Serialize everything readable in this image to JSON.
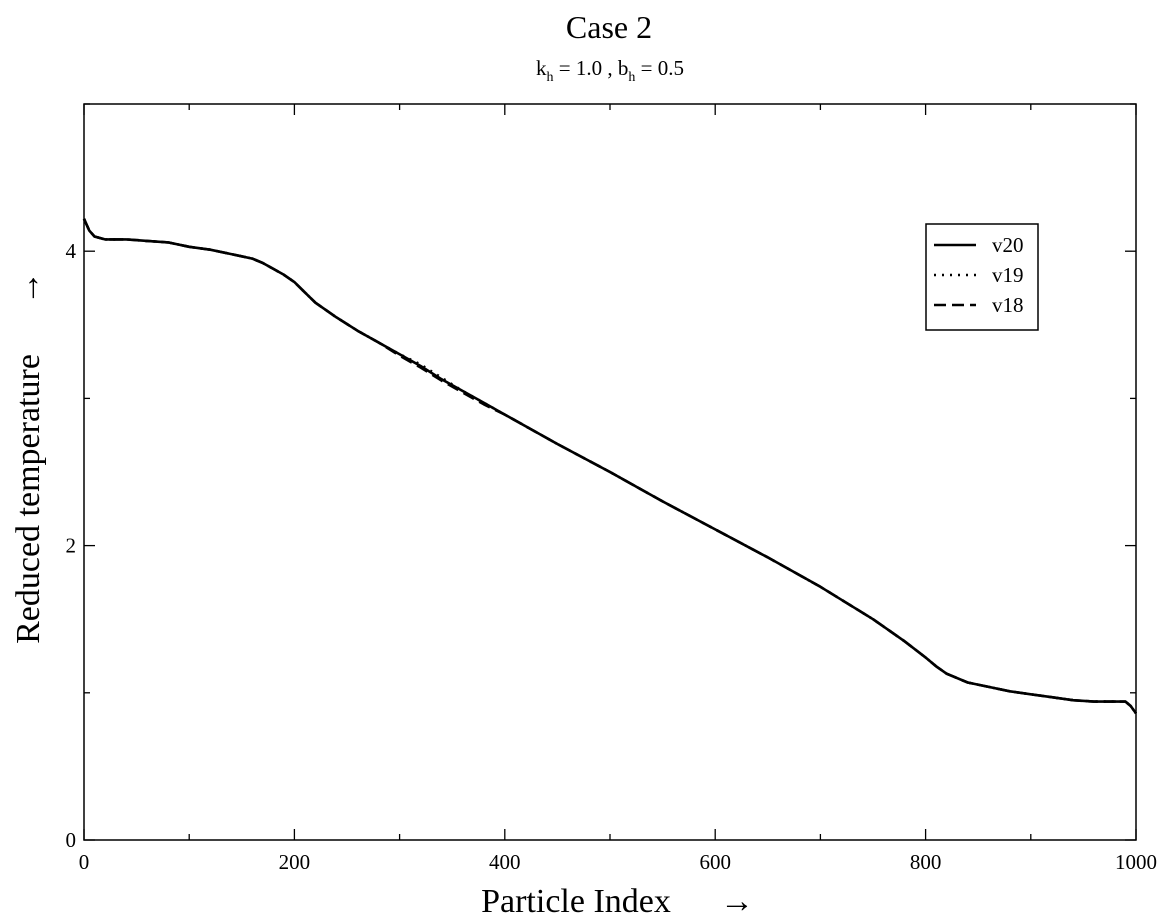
{
  "chart_data": {
    "type": "line",
    "title": "Case 2",
    "subtitle": {
      "k_symbol": "k",
      "k_sub": "h",
      "k_rest": " = 1.0 , ",
      "b_symbol": "b",
      "b_sub": "h",
      "b_rest": " = 0.5"
    },
    "xlabel": "Particle Index",
    "ylabel": "Reduced temperature",
    "arrow": "→",
    "xlim": [
      0,
      1000
    ],
    "ylim": [
      0,
      5
    ],
    "x_ticks": [
      0,
      200,
      400,
      600,
      800,
      1000
    ],
    "x_tick_labels": [
      "0",
      "200",
      "400",
      "600",
      "800",
      "1000"
    ],
    "y_ticks": [
      0,
      2,
      4
    ],
    "y_tick_labels": [
      "0",
      "2",
      "4"
    ],
    "x_minor_step": 100,
    "y_minor_step": 1,
    "grid": false,
    "legend_position": "top-right",
    "line_color": "#000000",
    "series": [
      {
        "name": "v20",
        "style": "solid",
        "x": [
          0,
          5,
          10,
          20,
          40,
          60,
          80,
          100,
          120,
          140,
          160,
          170,
          180,
          190,
          200,
          210,
          220,
          240,
          260,
          280,
          300,
          320,
          340,
          360,
          380,
          400,
          450,
          500,
          550,
          600,
          650,
          700,
          750,
          780,
          800,
          810,
          820,
          840,
          860,
          880,
          900,
          920,
          940,
          960,
          980,
          990,
          995,
          1000
        ],
        "y": [
          4.22,
          4.14,
          4.1,
          4.08,
          4.08,
          4.07,
          4.06,
          4.03,
          4.01,
          3.98,
          3.95,
          3.92,
          3.88,
          3.84,
          3.79,
          3.72,
          3.65,
          3.55,
          3.46,
          3.38,
          3.3,
          3.22,
          3.13,
          3.05,
          2.97,
          2.89,
          2.69,
          2.5,
          2.3,
          2.11,
          1.92,
          1.72,
          1.5,
          1.35,
          1.24,
          1.18,
          1.13,
          1.07,
          1.04,
          1.01,
          0.99,
          0.97,
          0.95,
          0.94,
          0.94,
          0.94,
          0.91,
          0.86
        ]
      },
      {
        "name": "v19",
        "style": "dotted",
        "x": [
          0,
          5,
          10,
          20,
          40,
          60,
          80,
          100,
          120,
          140,
          160,
          170,
          180,
          190,
          200,
          210,
          220,
          240,
          260,
          280,
          300,
          320,
          340,
          360,
          380,
          400,
          450,
          500,
          550,
          600,
          650,
          700,
          750,
          780,
          800,
          810,
          820,
          840,
          860,
          880,
          900,
          920,
          940,
          960,
          980,
          990,
          995,
          1000
        ],
        "y": [
          4.22,
          4.14,
          4.1,
          4.08,
          4.08,
          4.07,
          4.06,
          4.03,
          4.01,
          3.98,
          3.95,
          3.92,
          3.88,
          3.84,
          3.79,
          3.72,
          3.65,
          3.55,
          3.46,
          3.38,
          3.3,
          3.23,
          3.14,
          3.05,
          2.97,
          2.89,
          2.69,
          2.5,
          2.3,
          2.11,
          1.92,
          1.72,
          1.5,
          1.35,
          1.24,
          1.18,
          1.13,
          1.07,
          1.04,
          1.01,
          0.99,
          0.97,
          0.95,
          0.94,
          0.94,
          0.94,
          0.91,
          0.86
        ]
      },
      {
        "name": "v18",
        "style": "dashed",
        "x": [
          0,
          5,
          10,
          20,
          40,
          60,
          80,
          100,
          120,
          140,
          160,
          170,
          180,
          190,
          200,
          210,
          220,
          240,
          260,
          280,
          300,
          320,
          340,
          360,
          380,
          400,
          450,
          500,
          550,
          600,
          650,
          700,
          750,
          780,
          800,
          810,
          820,
          840,
          860,
          880,
          900,
          920,
          940,
          960,
          980,
          990,
          995,
          1000
        ],
        "y": [
          4.22,
          4.14,
          4.1,
          4.08,
          4.08,
          4.07,
          4.06,
          4.03,
          4.01,
          3.98,
          3.95,
          3.92,
          3.88,
          3.84,
          3.79,
          3.72,
          3.65,
          3.55,
          3.46,
          3.38,
          3.29,
          3.21,
          3.12,
          3.04,
          2.96,
          2.89,
          2.69,
          2.5,
          2.3,
          2.11,
          1.92,
          1.72,
          1.5,
          1.35,
          1.24,
          1.18,
          1.13,
          1.07,
          1.04,
          1.01,
          0.99,
          0.97,
          0.95,
          0.94,
          0.94,
          0.94,
          0.91,
          0.86
        ]
      }
    ]
  }
}
